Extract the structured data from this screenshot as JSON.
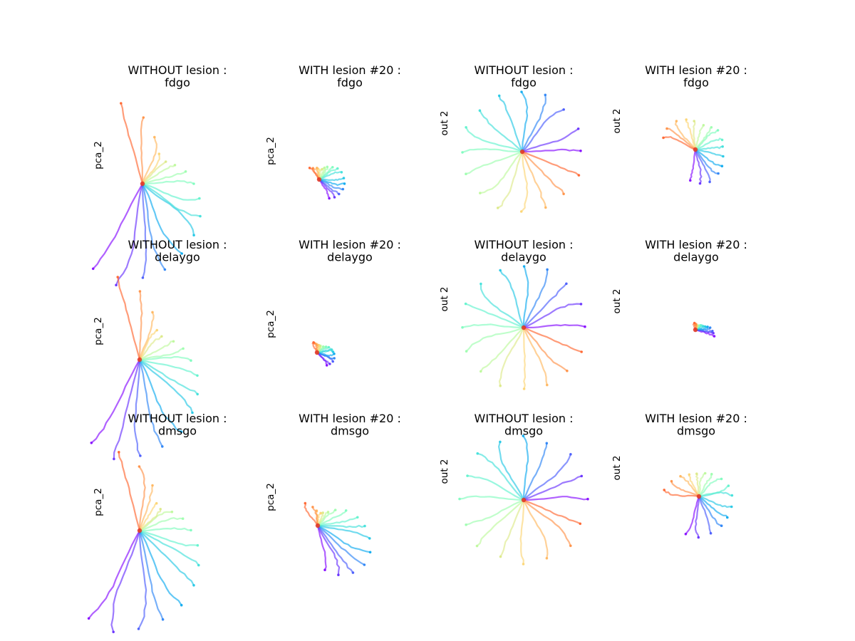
{
  "figure": {
    "rows": [
      "fdgo",
      "delaygo",
      "dmsgo"
    ],
    "lesion_unit": 20,
    "columns": [
      {
        "condition": "WITHOUT lesion",
        "space": "pca",
        "ylabel": "pca_2"
      },
      {
        "condition": "WITH lesion #20",
        "space": "pca",
        "ylabel": "pca_2"
      },
      {
        "condition": "WITHOUT lesion",
        "space": "output",
        "ylabel": "out 2"
      },
      {
        "condition": "WITH lesion #20",
        "space": "output",
        "ylabel": "out 2"
      }
    ],
    "panels": [
      {
        "title_line1": "WITHOUT lesion :",
        "title_line2": "fdgo",
        "ylabel": "pca_2"
      },
      {
        "title_line1": "WITH lesion #20 :",
        "title_line2": "fdgo",
        "ylabel": "pca_2"
      },
      {
        "title_line1": "WITHOUT lesion :",
        "title_line2": "fdgo",
        "ylabel": "out 2"
      },
      {
        "title_line1": "WITH lesion #20 :",
        "title_line2": "fdgo",
        "ylabel": "out 2"
      },
      {
        "title_line1": "WITHOUT lesion :",
        "title_line2": "delaygo",
        "ylabel": "pca_2"
      },
      {
        "title_line1": "WITH lesion #20 :",
        "title_line2": "delaygo",
        "ylabel": "pca_2"
      },
      {
        "title_line1": "WITHOUT lesion :",
        "title_line2": "delaygo",
        "ylabel": "out 2"
      },
      {
        "title_line1": "WITH lesion #20 :",
        "title_line2": "delaygo",
        "ylabel": "out 2"
      },
      {
        "title_line1": "WITHOUT lesion :",
        "title_line2": "dmsgo",
        "ylabel": "pca_2"
      },
      {
        "title_line1": "WITH lesion #20 :",
        "title_line2": "dmsgo",
        "ylabel": "pca_2"
      },
      {
        "title_line1": "WITHOUT lesion :",
        "title_line2": "dmsgo",
        "ylabel": "out 2"
      },
      {
        "title_line1": "WITH lesion #20 :",
        "title_line2": "dmsgo",
        "ylabel": "out 2"
      }
    ]
  },
  "chart_data": {
    "type": "line",
    "grid": false,
    "axes_visible": false,
    "colormap": "rainbow",
    "trajectory_alpha": 0.62,
    "n_trajectories_per_panel": 16,
    "stimulus_angles_deg": [
      0,
      22.5,
      45,
      67.5,
      90,
      112.5,
      135,
      157.5,
      180,
      202.5,
      225,
      247.5,
      270,
      292.5,
      315,
      337.5
    ],
    "trajectory_colors": [
      "#8000ff",
      "#6129fe",
      "#4256fb",
      "#237ff6",
      "#03a7ef",
      "#1bc5e4",
      "#3adfd9",
      "#5af2cb",
      "#7afcbc",
      "#9afeab",
      "#bbf898",
      "#dbe984",
      "#fcd46f",
      "#ffb458",
      "#ff8d40",
      "#ff5f27"
    ],
    "origin_color": "#e03a2a",
    "panels": [
      {
        "task": "fdgo",
        "condition": "WITHOUT lesion",
        "space": "pca",
        "fan_start_deg": -120,
        "fan_span_deg": 225,
        "lengths": [
          0.92,
          0.98,
          0.88,
          0.83,
          0.75,
          0.68,
          0.62,
          0.55,
          0.48,
          0.42,
          0.35,
          0.3,
          0.32,
          0.45,
          0.62,
          0.78
        ]
      },
      {
        "task": "fdgo",
        "condition": "WITH lesion #20",
        "space": "pca",
        "fan_start_deg": -60,
        "fan_span_deg": 190,
        "lengths": [
          0.2,
          0.22,
          0.23,
          0.24,
          0.24,
          0.23,
          0.22,
          0.2,
          0.17,
          0.14,
          0.12,
          0.1,
          0.1,
          0.11,
          0.12,
          0.14
        ]
      },
      {
        "task": "fdgo",
        "condition": "WITHOUT lesion",
        "space": "output",
        "fan_start_deg": 0,
        "fan_span_deg": 337.5,
        "lengths": [
          0.82,
          0.85,
          0.83,
          0.86,
          0.84,
          0.85,
          0.83,
          0.86,
          0.84,
          0.85,
          0.83,
          0.86,
          0.84,
          0.85,
          0.83,
          0.86
        ]
      },
      {
        "task": "fdgo",
        "condition": "WITH lesion #20",
        "space": "output",
        "fan_start_deg": -100,
        "fan_span_deg": 260,
        "lengths": [
          0.55,
          0.6,
          0.62,
          0.58,
          0.55,
          0.5,
          0.48,
          0.5,
          0.52,
          0.48,
          0.45,
          0.5,
          0.55,
          0.6,
          0.62,
          0.6
        ]
      },
      {
        "task": "delaygo",
        "condition": "WITHOUT lesion",
        "space": "pca",
        "fan_start_deg": -120,
        "fan_span_deg": 225,
        "lengths": [
          0.9,
          0.96,
          0.9,
          0.84,
          0.78,
          0.7,
          0.63,
          0.56,
          0.48,
          0.42,
          0.36,
          0.3,
          0.32,
          0.46,
          0.64,
          0.8
        ]
      },
      {
        "task": "delaygo",
        "condition": "WITH lesion #20",
        "space": "pca",
        "fan_start_deg": -50,
        "fan_span_deg": 160,
        "lengths": [
          0.15,
          0.16,
          0.17,
          0.17,
          0.16,
          0.15,
          0.14,
          0.12,
          0.1,
          0.08,
          0.07,
          0.07,
          0.07,
          0.08,
          0.09,
          0.1
        ]
      },
      {
        "task": "delaygo",
        "condition": "WITHOUT lesion",
        "space": "output",
        "fan_start_deg": 0,
        "fan_span_deg": 337.5,
        "lengths": [
          0.86,
          0.87,
          0.86,
          0.88,
          0.86,
          0.87,
          0.86,
          0.88,
          0.86,
          0.87,
          0.86,
          0.88,
          0.86,
          0.87,
          0.86,
          0.88
        ]
      },
      {
        "task": "delaygo",
        "condition": "WITH lesion #20",
        "space": "output",
        "fan_start_deg": -20,
        "fan_span_deg": 120,
        "lengths": [
          0.35,
          0.32,
          0.3,
          0.26,
          0.22,
          0.18,
          0.15,
          0.12,
          0.1,
          0.09,
          0.08,
          0.08,
          0.08,
          0.09,
          0.1,
          0.12
        ]
      },
      {
        "task": "dmsgo",
        "condition": "WITHOUT lesion",
        "space": "pca",
        "fan_start_deg": -120,
        "fan_span_deg": 225,
        "lengths": [
          0.95,
          0.98,
          0.92,
          0.86,
          0.8,
          0.72,
          0.64,
          0.56,
          0.48,
          0.42,
          0.35,
          0.28,
          0.3,
          0.44,
          0.6,
          0.76
        ]
      },
      {
        "task": "dmsgo",
        "condition": "WITH lesion #20",
        "space": "pca",
        "fan_start_deg": -80,
        "fan_span_deg": 200,
        "lengths": [
          0.42,
          0.5,
          0.55,
          0.57,
          0.55,
          0.5,
          0.44,
          0.38,
          0.3,
          0.22,
          0.16,
          0.13,
          0.12,
          0.14,
          0.18,
          0.24
        ]
      },
      {
        "task": "dmsgo",
        "condition": "WITHOUT lesion",
        "space": "output",
        "fan_start_deg": 0,
        "fan_span_deg": 337.5,
        "lengths": [
          0.9,
          0.88,
          0.92,
          0.86,
          0.9,
          0.88,
          0.92,
          0.86,
          0.9,
          0.88,
          0.92,
          0.86,
          0.9,
          0.88,
          0.92,
          0.86
        ]
      },
      {
        "task": "dmsgo",
        "condition": "WITH lesion #20",
        "space": "output",
        "fan_start_deg": -110,
        "fan_span_deg": 280,
        "lengths": [
          0.7,
          0.72,
          0.68,
          0.65,
          0.62,
          0.6,
          0.58,
          0.55,
          0.5,
          0.45,
          0.42,
          0.4,
          0.42,
          0.48,
          0.55,
          0.62
        ]
      }
    ]
  }
}
